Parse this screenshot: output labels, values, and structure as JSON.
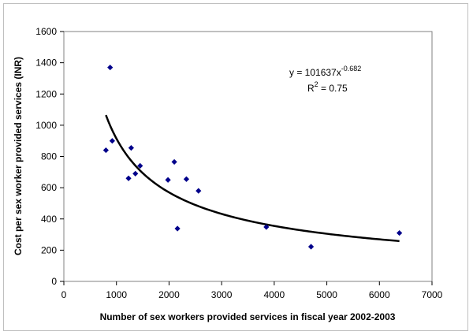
{
  "chart_data": {
    "type": "scatter",
    "title": "",
    "xlabel": "Number of sex workers provided services in fiscal year 2002-2003",
    "ylabel": "Cost per sex worker provided services (INR)",
    "xlim": [
      0,
      7000
    ],
    "ylim": [
      0,
      1600
    ],
    "xticks": [
      0,
      1000,
      2000,
      3000,
      4000,
      5000,
      6000,
      7000
    ],
    "yticks": [
      0,
      200,
      400,
      600,
      800,
      1000,
      1200,
      1400,
      1600
    ],
    "xtick_labels": [
      "0",
      "1000",
      "2000",
      "3000",
      "4000",
      "5000",
      "6000",
      "7000"
    ],
    "ytick_labels": [
      "0",
      "200",
      "400",
      "600",
      "800",
      "1000",
      "1200",
      "1400",
      "1600"
    ],
    "grid": false,
    "marker_color": "#00008B",
    "series": [
      {
        "points": [
          {
            "x": 800,
            "y": 840
          },
          {
            "x": 880,
            "y": 1370
          },
          {
            "x": 920,
            "y": 900
          },
          {
            "x": 1230,
            "y": 660
          },
          {
            "x": 1280,
            "y": 855
          },
          {
            "x": 1360,
            "y": 690
          },
          {
            "x": 1450,
            "y": 740
          },
          {
            "x": 1980,
            "y": 650
          },
          {
            "x": 2100,
            "y": 765
          },
          {
            "x": 2160,
            "y": 338
          },
          {
            "x": 2330,
            "y": 655
          },
          {
            "x": 2560,
            "y": 580
          },
          {
            "x": 3850,
            "y": 348
          },
          {
            "x": 4700,
            "y": 222
          },
          {
            "x": 6380,
            "y": 310
          }
        ]
      }
    ],
    "trendline": {
      "type": "power",
      "coefficient": 101637,
      "exponent": -0.682,
      "x_start": 800,
      "x_end": 6380,
      "equation_prefix": "y = 101637x",
      "equation_exponent": "-0.682",
      "r2_prefix": "R",
      "r2_sup": "2",
      "r2_value": " = 0.75",
      "color": "#000000"
    }
  }
}
